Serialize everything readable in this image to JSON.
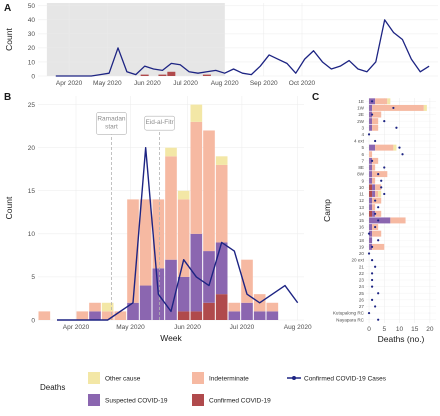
{
  "colors": {
    "other": "#f3e7a6",
    "indeterminate": "#f6b9a2",
    "suspected": "#8b66b0",
    "confirmed": "#b04a4c",
    "line": "#1d2483",
    "shade": "#e6e6e6",
    "grid": "#ebebeb",
    "ann": "#b3b3b3"
  },
  "legend": {
    "title": "Deaths",
    "items": [
      {
        "label": "Other cause",
        "key": "other",
        "kind": "box"
      },
      {
        "label": "Indeterminate",
        "key": "indeterminate",
        "kind": "box"
      },
      {
        "label": "Confirmed COVID-19 Cases",
        "key": "line",
        "kind": "line"
      },
      {
        "label": "Suspected COVID-19",
        "key": "suspected",
        "kind": "box"
      },
      {
        "label": "Confirmed COVID-19",
        "key": "confirmed",
        "kind": "box"
      }
    ]
  },
  "chart_data": [
    {
      "panel": "A",
      "type": "line",
      "ylabel": "Count",
      "xlim": [
        -2,
        43
      ],
      "ylim": [
        0,
        52
      ],
      "yticks": [
        0,
        10,
        20,
        30,
        40,
        50
      ],
      "xticks": [
        {
          "label": "Apr 2020",
          "x": 1.5
        },
        {
          "label": "May 2020",
          "x": 5.8
        },
        {
          "label": "Jun 2020",
          "x": 10.3
        },
        {
          "label": "Jul 2020",
          "x": 14.6
        },
        {
          "label": "Aug 2020",
          "x": 19.0
        },
        {
          "label": "Sep 2020",
          "x": 23.4
        },
        {
          "label": "Oct 2020",
          "x": 27.7
        }
      ],
      "shaded_range": [
        -1,
        19
      ],
      "cases_x": [
        0,
        1,
        2,
        3,
        4,
        5,
        6,
        7,
        8,
        9,
        10,
        11,
        12,
        13,
        14,
        15,
        16,
        17,
        18,
        19,
        20,
        21,
        22,
        23,
        24,
        25,
        26,
        27,
        28,
        29,
        30,
        31,
        32,
        33,
        34,
        35,
        36,
        37,
        38,
        39,
        40,
        41,
        42
      ],
      "cases_y": [
        0,
        0,
        0,
        0,
        0,
        1,
        2,
        20,
        3,
        1,
        7,
        5,
        4,
        9,
        8,
        3,
        2,
        3,
        4,
        2,
        5,
        2,
        1,
        7,
        15,
        12,
        9,
        2,
        12,
        18,
        10,
        5,
        7,
        11,
        5,
        3,
        10,
        40,
        31,
        26,
        12,
        3,
        7
      ],
      "cases_x_note": "weekly series, panel A extended",
      "deaths_stack_small": [
        {
          "x": 10,
          "confirmed": 1
        },
        {
          "x": 12,
          "confirmed": 1
        },
        {
          "x": 13,
          "confirmed": 3
        },
        {
          "x": 17,
          "confirmed": 1
        }
      ]
    },
    {
      "panel": "B",
      "type": "bar",
      "xlabel": "Week",
      "ylabel": "Count",
      "ylim": [
        0,
        26
      ],
      "yticks": [
        0,
        5,
        10,
        15,
        20,
        25
      ],
      "xlim": [
        -1.5,
        19.5
      ],
      "xticks": [
        {
          "label": "Apr 2020",
          "x": 1.5
        },
        {
          "label": "May 2020",
          "x": 5.8
        },
        {
          "label": "Jun 2020",
          "x": 10.3
        },
        {
          "label": "Jul 2020",
          "x": 14.6
        },
        {
          "label": "Aug 2020",
          "x": 19.0
        }
      ],
      "annotations": [
        {
          "label_lines": [
            "Ramadan",
            "start"
          ],
          "x": 4.3,
          "y": 22
        },
        {
          "label_lines": [
            "Eid-al-Fitr"
          ],
          "x": 8.1,
          "y": 22.5
        }
      ],
      "weeks": [
        -1,
        0,
        1,
        2,
        3,
        4,
        5,
        6,
        7,
        8,
        9,
        10,
        11,
        12,
        13,
        14,
        15,
        16,
        17,
        18,
        19
      ],
      "confirmed": [
        0,
        0,
        0,
        0,
        0,
        0,
        0,
        0,
        0,
        0,
        0,
        1,
        1,
        2,
        3,
        0,
        0,
        0,
        0,
        0,
        0
      ],
      "suspected": [
        0,
        0,
        0,
        0,
        1,
        0,
        0,
        2,
        4,
        6,
        7,
        4,
        9,
        6,
        6,
        1,
        2,
        1,
        1,
        0,
        0
      ],
      "indeterminate": [
        1,
        0,
        0,
        1,
        1,
        1,
        1,
        12,
        10,
        8,
        12,
        9,
        13,
        14,
        9,
        1,
        5,
        2,
        1,
        0,
        0
      ],
      "other": [
        0,
        0,
        0,
        0,
        0,
        1,
        0,
        0,
        0,
        0,
        1,
        1,
        2,
        0,
        1,
        0,
        0,
        0,
        0,
        0,
        0
      ],
      "cases_x": [
        0,
        1,
        2,
        3,
        4,
        5,
        6,
        7,
        8,
        9,
        10,
        11,
        12,
        13,
        14,
        15,
        16,
        17,
        18,
        19
      ],
      "cases_y": [
        0,
        0,
        0,
        0,
        0,
        1,
        2,
        20,
        3,
        1,
        7,
        5,
        4,
        9,
        8,
        3,
        2,
        3,
        4,
        2
      ],
      "cases_tail": [
        {
          "x": 14.6,
          "y": 3
        },
        {
          "x": 15.5,
          "y": 2
        },
        {
          "x": 16.3,
          "y": 5
        },
        {
          "x": 17.1,
          "y": 2
        },
        {
          "x": 17.6,
          "y": 1
        },
        {
          "x": 18.3,
          "y": 8
        },
        {
          "x": 18.9,
          "y": 4
        },
        {
          "x": 19.4,
          "y": 2
        }
      ]
    },
    {
      "panel": "C",
      "type": "bar",
      "orientation": "horizontal",
      "xlabel": "Deaths (no.)",
      "ylabel": "Camp",
      "xlim": [
        -1,
        22
      ],
      "xticks": [
        0,
        5,
        10,
        15,
        20
      ],
      "camps": [
        "1E",
        "1W",
        "2E",
        "2W",
        "3",
        "4",
        "4 ext",
        "5",
        "6",
        "7",
        "8E",
        "8W",
        "9",
        "10",
        "11",
        "12",
        "13",
        "14",
        "15",
        "16",
        "17",
        "18",
        "19",
        "20",
        "20 ext",
        "21",
        "22",
        "23",
        "24",
        "25",
        "26",
        "27",
        "Kutupalong RC",
        "Nayapara RC"
      ],
      "confirmed": [
        0,
        0,
        0,
        0,
        0,
        0,
        0,
        0,
        0,
        0,
        0,
        0,
        0,
        1,
        1,
        0,
        0,
        1,
        0,
        0,
        0,
        0,
        0,
        0,
        0,
        0,
        0,
        0,
        0,
        0,
        0,
        0,
        0,
        0
      ],
      "suspected": [
        2,
        1,
        1,
        1,
        1,
        0,
        0,
        2,
        0,
        1,
        1,
        1,
        1,
        1,
        1,
        1,
        1,
        1,
        7,
        1,
        1,
        1,
        1,
        0,
        0,
        0,
        0,
        0,
        0,
        0,
        0,
        0,
        0,
        0
      ],
      "indeterminate": [
        4,
        17,
        3,
        2,
        2,
        0,
        0,
        6,
        1,
        2,
        1,
        5,
        1,
        2,
        1,
        3,
        1,
        2,
        5,
        2,
        3,
        0,
        4,
        0,
        0,
        0,
        0,
        0,
        0,
        0,
        0,
        0,
        0,
        0
      ],
      "other": [
        1,
        1,
        0,
        0,
        0,
        0,
        0,
        1,
        0,
        0,
        0,
        0,
        0,
        0,
        1,
        0,
        0,
        0,
        0,
        0,
        0,
        0,
        0,
        0,
        0,
        0,
        0,
        0,
        0,
        0,
        0,
        0,
        0,
        0
      ],
      "case_dots": [
        1,
        8,
        1,
        5,
        9,
        0,
        2,
        10,
        11,
        1,
        5,
        3,
        4,
        4,
        5,
        2,
        3,
        2,
        3,
        2,
        0,
        3,
        1,
        0,
        1,
        2,
        1,
        1,
        1,
        3,
        1,
        2,
        0,
        3
      ],
      "case_dots_color": "#1d2483"
    }
  ]
}
